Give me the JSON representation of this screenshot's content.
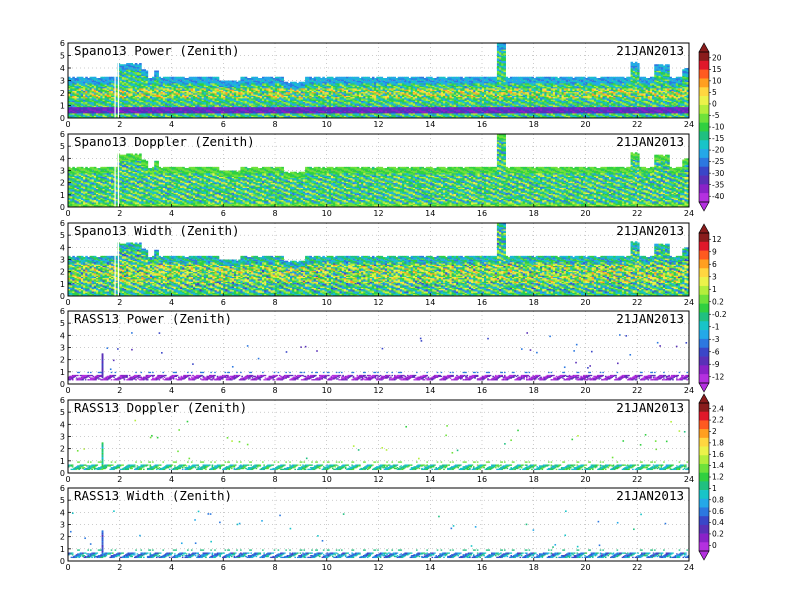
{
  "figure": {
    "date": "21JAN2013",
    "background": "#ffffff",
    "xlim": [
      0,
      24
    ],
    "ylim": [
      0,
      6
    ],
    "x_ticks": [
      "0",
      "2",
      "4",
      "6",
      "8",
      "10",
      "12",
      "14",
      "16",
      "18",
      "20",
      "22",
      "24"
    ],
    "y_ticks": [
      "0",
      "1",
      "2",
      "3",
      "4",
      "5",
      "6"
    ]
  },
  "chart_data": [
    {
      "type": "heatmap",
      "title": "Spano13 Power (Zenith)",
      "date": "21JAN2013",
      "xlim": [
        0,
        24
      ],
      "ylim": [
        0,
        6
      ],
      "colorbar": 0,
      "grid": true,
      "field": {
        "style": "dense",
        "top_km": 3.3,
        "base_value": -12,
        "spread": 6,
        "low_band": {
          "ymin": 0.35,
          "ymax": 0.8,
          "value": -36
        },
        "mid_band": {
          "ymin": 1.6,
          "ymax": 2.4,
          "value": 2
        },
        "top_layer_value": -24,
        "towers": [
          {
            "x0": 1.85,
            "x1": 2.75,
            "top": 4.4
          },
          {
            "x0": 2.75,
            "x1": 3.05,
            "top": 3.9
          },
          {
            "x0": 3.3,
            "x1": 3.45,
            "top": 3.8
          },
          {
            "x0": 16.55,
            "x1": 16.9,
            "top": 5.9
          },
          {
            "x0": 21.7,
            "x1": 22.0,
            "top": 4.5
          },
          {
            "x0": 22.6,
            "x1": 23.2,
            "top": 4.3
          },
          {
            "x0": 23.7,
            "x1": 24.0,
            "top": 4.0
          }
        ],
        "gaps": [
          {
            "x0": 5.8,
            "x1": 6.65,
            "top": 3.0
          },
          {
            "x0": 8.3,
            "x1": 9.1,
            "top": 2.9
          }
        ]
      }
    },
    {
      "type": "heatmap",
      "title": "Spano13 Doppler (Zenith)",
      "date": "21JAN2013",
      "xlim": [
        0,
        24
      ],
      "ylim": [
        0,
        6
      ],
      "colorbar": 0,
      "grid": true,
      "field": {
        "style": "dense",
        "top_km": 3.3,
        "base_value": -11,
        "spread": 7,
        "low_band": {
          "ymin": 0.0,
          "ymax": 0.25,
          "value": -9
        },
        "top_layer_value": -11,
        "towers": [
          {
            "x0": 1.85,
            "x1": 2.75,
            "top": 4.4
          },
          {
            "x0": 2.75,
            "x1": 3.05,
            "top": 3.9
          },
          {
            "x0": 3.3,
            "x1": 3.45,
            "top": 3.8
          },
          {
            "x0": 16.55,
            "x1": 16.9,
            "top": 5.9
          },
          {
            "x0": 21.7,
            "x1": 22.0,
            "top": 4.5
          },
          {
            "x0": 22.6,
            "x1": 23.2,
            "top": 4.3
          },
          {
            "x0": 23.7,
            "x1": 24.0,
            "top": 4.0
          }
        ],
        "gaps": [
          {
            "x0": 5.8,
            "x1": 6.65,
            "top": 3.0
          },
          {
            "x0": 8.3,
            "x1": 9.1,
            "top": 2.9
          }
        ]
      }
    },
    {
      "type": "heatmap",
      "title": "Spano13 Width (Zenith)",
      "date": "21JAN2013",
      "xlim": [
        0,
        24
      ],
      "ylim": [
        0,
        6
      ],
      "colorbar": 1,
      "grid": true,
      "field": {
        "style": "dense",
        "top_km": 3.3,
        "base_value": 0.6,
        "spread": 3.5,
        "low_band": {
          "ymin": 0.0,
          "ymax": 0.3,
          "value": -1
        },
        "mid_band": {
          "ymin": 1.0,
          "ymax": 2.6,
          "value": 4
        },
        "top_layer_value": -3,
        "towers": [
          {
            "x0": 1.85,
            "x1": 2.75,
            "top": 4.4
          },
          {
            "x0": 2.75,
            "x1": 3.05,
            "top": 3.9
          },
          {
            "x0": 3.3,
            "x1": 3.45,
            "top": 3.8
          },
          {
            "x0": 16.55,
            "x1": 16.9,
            "top": 5.9
          },
          {
            "x0": 21.7,
            "x1": 22.0,
            "top": 4.5
          },
          {
            "x0": 22.6,
            "x1": 23.2,
            "top": 4.3
          },
          {
            "x0": 23.7,
            "x1": 24.0,
            "top": 4.0
          }
        ],
        "gaps": [
          {
            "x0": 5.8,
            "x1": 6.65,
            "top": 3.0
          },
          {
            "x0": 8.3,
            "x1": 9.1,
            "top": 2.9
          }
        ]
      }
    },
    {
      "type": "heatmap",
      "title": "RASS13 Power (Zenith)",
      "date": "21JAN2013",
      "xlim": [
        0,
        24
      ],
      "ylim": [
        0,
        6
      ],
      "colorbar": 1,
      "grid": true,
      "field": {
        "style": "sparse",
        "band": {
          "y": 0.6,
          "half_width": 0.2,
          "value": -11,
          "spread": 2
        },
        "upper_line": {
          "y": 1.0,
          "value": -7
        },
        "spike": {
          "x": 1.3,
          "top": 2.6,
          "value": -9
        },
        "scatter_count": 40,
        "scatter_value": -8,
        "scatter_spread": 4
      }
    },
    {
      "type": "heatmap",
      "title": "RASS13 Doppler (Zenith)",
      "date": "21JAN2013",
      "xlim": [
        0,
        24
      ],
      "ylim": [
        0,
        6
      ],
      "colorbar": 2,
      "grid": true,
      "field": {
        "style": "sparse",
        "band": {
          "y": 0.55,
          "half_width": 0.2,
          "value": 1.15,
          "spread": 0.3
        },
        "upper_line": {
          "y": 0.95,
          "value": 1.3
        },
        "spike": {
          "x": 1.3,
          "top": 2.6,
          "value": 1.25
        },
        "scatter_count": 40,
        "scatter_value": 1.3,
        "scatter_spread": 0.5
      }
    },
    {
      "type": "heatmap",
      "title": "RASS13 Width (Zenith)",
      "date": "21JAN2013",
      "xlim": [
        0,
        24
      ],
      "ylim": [
        0,
        6
      ],
      "colorbar": 2,
      "grid": true,
      "field": {
        "style": "sparse",
        "band": {
          "y": 0.55,
          "half_width": 0.2,
          "value": 0.85,
          "spread": 0.4
        },
        "upper_line": {
          "y": 0.95,
          "value": 1.1
        },
        "spike": {
          "x": 1.3,
          "top": 2.6,
          "value": 0.7
        },
        "scatter_count": 40,
        "scatter_value": 0.8,
        "scatter_spread": 0.5
      }
    }
  ],
  "colorbars": [
    {
      "labels": [
        "20",
        "15",
        "10",
        "5",
        "0",
        "-5",
        "-10",
        "-15",
        "-20",
        "-25",
        "-30",
        "-35",
        "-40"
      ],
      "bounds": [
        -45,
        20
      ],
      "colors": [
        "#8a1c1c",
        "#e0182a",
        "#ff5a20",
        "#ff9f20",
        "#ffd640",
        "#ecf24a",
        "#b4ee3c",
        "#6ee23a",
        "#30d040",
        "#20c080",
        "#18c4c8",
        "#24a8e8",
        "#2c78e0",
        "#3a46c8",
        "#5a30b8",
        "#8a22c8",
        "#b430e0"
      ]
    },
    {
      "labels": [
        "12",
        "9",
        "6",
        "3",
        "1",
        "0.2",
        "-0.2",
        "-1",
        "-3",
        "-6",
        "-9",
        "-12"
      ],
      "bounds": [
        -14,
        14
      ],
      "colors": [
        "#8a1c1c",
        "#e0182a",
        "#ff5a20",
        "#ff9f20",
        "#ffd640",
        "#ecf24a",
        "#b4ee3c",
        "#6ee23a",
        "#30d040",
        "#20c080",
        "#18c4c8",
        "#24a8e8",
        "#2c78e0",
        "#3a46c8",
        "#5a30b8",
        "#8a22c8",
        "#b430e0"
      ]
    },
    {
      "labels": [
        "2.4",
        "2.2",
        "2",
        "1.8",
        "1.6",
        "1.4",
        "1.2",
        "1",
        "0.8",
        "0.6",
        "0.4",
        "0.2",
        "0"
      ],
      "bounds": [
        -0.1,
        2.5
      ],
      "colors": [
        "#8a1c1c",
        "#e0182a",
        "#ff5a20",
        "#ff9f20",
        "#ffd640",
        "#ecf24a",
        "#b4ee3c",
        "#6ee23a",
        "#30d040",
        "#20c080",
        "#18c4c8",
        "#24a8e8",
        "#2c78e0",
        "#3a46c8",
        "#5a30b8",
        "#8a22c8",
        "#b430e0"
      ]
    }
  ]
}
